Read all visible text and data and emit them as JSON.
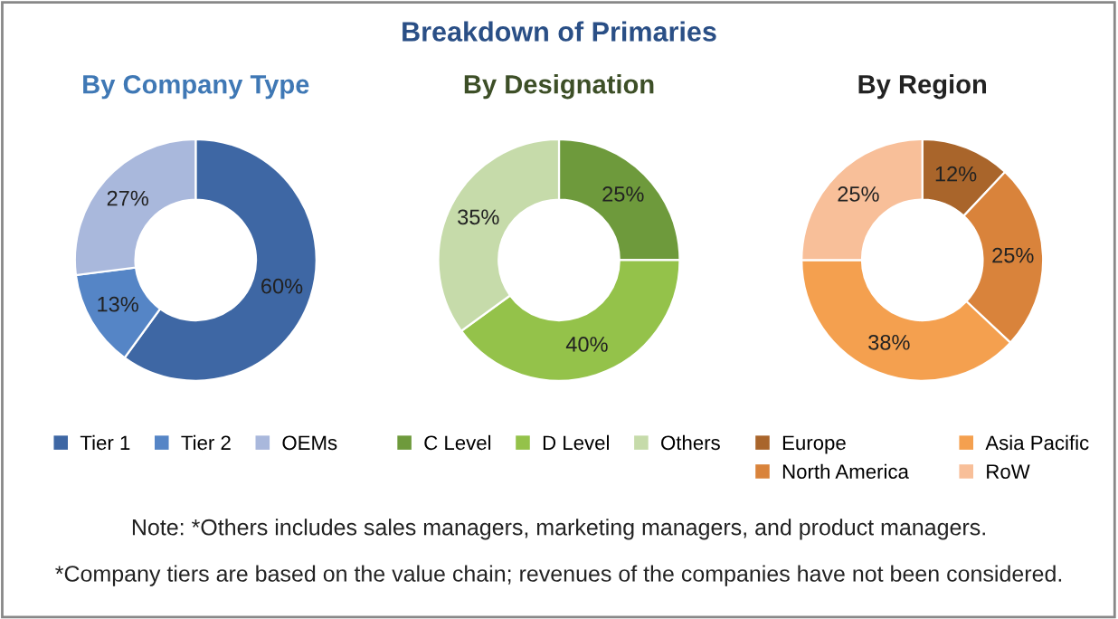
{
  "chart_data": [
    {
      "type": "donut",
      "subtitle": "By Company Type",
      "categories": [
        "Tier 1",
        "Tier 2",
        "OEMs"
      ],
      "values": [
        60,
        13,
        27
      ],
      "value_labels": [
        "60%",
        "13%",
        "27%"
      ],
      "colors": [
        "#3e67a4",
        "#5585c6",
        "#a9b8dc"
      ],
      "legend": "bottom"
    },
    {
      "type": "donut",
      "title": "Breakdown of Primaries",
      "subtitle": "By Designation",
      "categories": [
        "C Level",
        "D Level",
        "Others"
      ],
      "values": [
        25,
        40,
        35
      ],
      "value_labels": [
        "25%",
        "40%",
        "35%"
      ],
      "colors": [
        "#6e9a3c",
        "#94c24a",
        "#c6dbaa"
      ],
      "legend": "bottom"
    },
    {
      "type": "donut",
      "subtitle": "By Region",
      "categories": [
        "Europe",
        "North America",
        "Asia Pacific",
        "RoW"
      ],
      "values": [
        12,
        25,
        38,
        25
      ],
      "value_labels": [
        "12%",
        "25%",
        "38%",
        "25%"
      ],
      "colors": [
        "#a9652b",
        "#d9833b",
        "#f4a04f",
        "#f8bf99"
      ],
      "legend": "bottom",
      "annotations": [
        "Note: *Others includes sales managers, marketing managers, and product managers.",
        "*Company tiers are based on the value chain; revenues of the companies have not been considered."
      ]
    }
  ]
}
